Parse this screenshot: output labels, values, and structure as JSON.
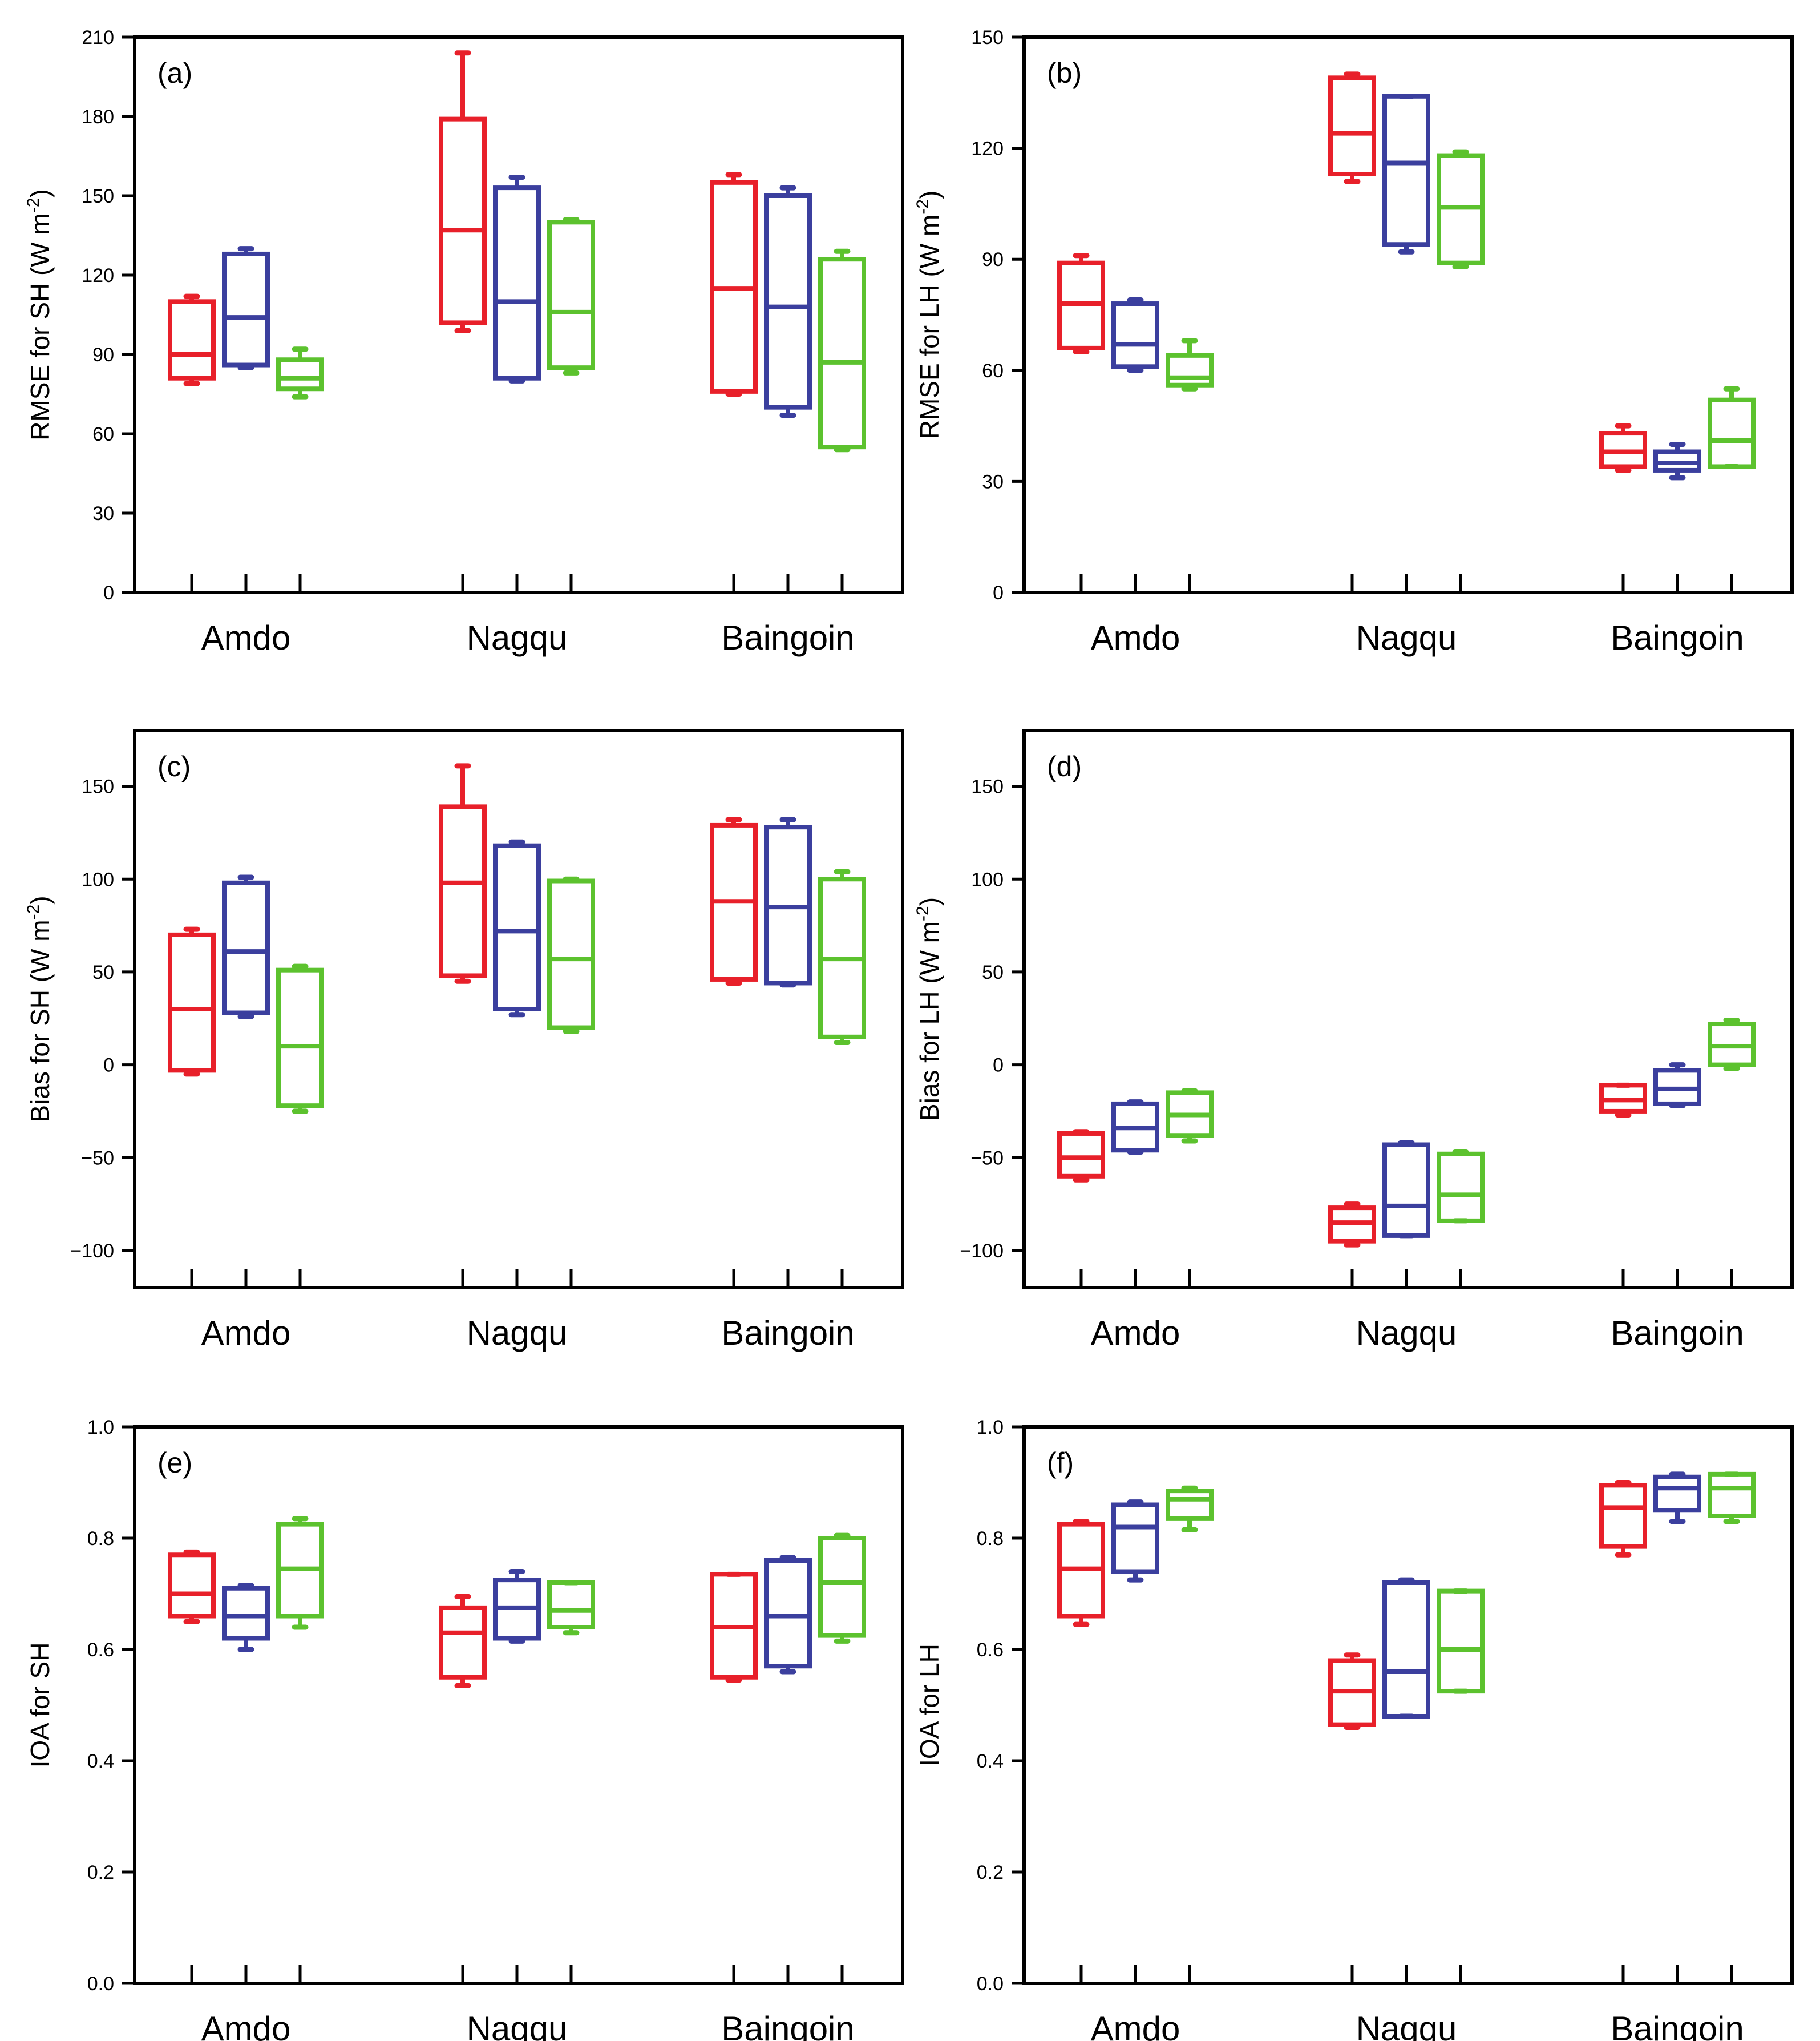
{
  "colors": {
    "red": "#e8202a",
    "blue": "#3b3f9e",
    "green": "#5cc22e"
  },
  "categories": [
    "Amdo",
    "Nagqu",
    "Baingoin"
  ],
  "chart_data": [
    {
      "type": "box",
      "panel": "(a)",
      "ylabel": "RMSE for SH (W m",
      "ylabel_sup": "-2",
      "ylabel_close": ")",
      "ylim": [
        0,
        210
      ],
      "yticks": [
        "0",
        "30",
        "60",
        "90",
        "120",
        "150",
        "180",
        "210"
      ],
      "series": [
        {
          "name": "red",
          "boxes": [
            {
              "low": 79,
              "q1": 81,
              "median": 90,
              "q3": 110,
              "high": 112
            },
            {
              "low": 99,
              "q1": 102,
              "median": 137,
              "q3": 179,
              "high": 204
            },
            {
              "low": 75,
              "q1": 76,
              "median": 115,
              "q3": 155,
              "high": 158
            }
          ]
        },
        {
          "name": "blue",
          "boxes": [
            {
              "low": 85,
              "q1": 86,
              "median": 104,
              "q3": 128,
              "high": 130
            },
            {
              "low": 80,
              "q1": 81,
              "median": 110,
              "q3": 153,
              "high": 157
            },
            {
              "low": 67,
              "q1": 70,
              "median": 108,
              "q3": 150,
              "high": 153
            }
          ]
        },
        {
          "name": "green",
          "boxes": [
            {
              "low": 74,
              "q1": 77,
              "median": 81,
              "q3": 88,
              "high": 92
            },
            {
              "low": 83,
              "q1": 85,
              "median": 106,
              "q3": 140,
              "high": 141
            },
            {
              "low": 54,
              "q1": 55,
              "median": 87,
              "q3": 126,
              "high": 129
            }
          ]
        }
      ]
    },
    {
      "type": "box",
      "panel": "(b)",
      "ylabel": "RMSE for LH (W m",
      "ylabel_sup": "-2",
      "ylabel_close": ")",
      "ylim": [
        0,
        150
      ],
      "yticks": [
        "0",
        "30",
        "60",
        "90",
        "120",
        "150"
      ],
      "series": [
        {
          "name": "red",
          "boxes": [
            {
              "low": 65,
              "q1": 66,
              "median": 78,
              "q3": 89,
              "high": 91
            },
            {
              "low": 111,
              "q1": 113,
              "median": 124,
              "q3": 139,
              "high": 140
            },
            {
              "low": 33,
              "q1": 34,
              "median": 38,
              "q3": 43,
              "high": 45
            }
          ]
        },
        {
          "name": "blue",
          "boxes": [
            {
              "low": 60,
              "q1": 61,
              "median": 67,
              "q3": 78,
              "high": 79
            },
            {
              "low": 92,
              "q1": 94,
              "median": 116,
              "q3": 134,
              "high": 134
            },
            {
              "low": 31,
              "q1": 33,
              "median": 35,
              "q3": 38,
              "high": 40
            }
          ]
        },
        {
          "name": "green",
          "boxes": [
            {
              "low": 55,
              "q1": 56,
              "median": 58,
              "q3": 64,
              "high": 68
            },
            {
              "low": 88,
              "q1": 89,
              "median": 104,
              "q3": 118,
              "high": 119
            },
            {
              "low": 34,
              "q1": 34,
              "median": 41,
              "q3": 52,
              "high": 55
            }
          ]
        }
      ]
    },
    {
      "type": "box",
      "panel": "(c)",
      "ylabel": "Bias for SH (W m",
      "ylabel_sup": "-2",
      "ylabel_close": ")",
      "ylim": [
        -120,
        180
      ],
      "yticks": [
        "−100",
        "−50",
        "0",
        "50",
        "100",
        "150"
      ],
      "ytick_values": [
        -100,
        -50,
        0,
        50,
        100,
        150
      ],
      "series": [
        {
          "name": "red",
          "boxes": [
            {
              "low": -5,
              "q1": -3,
              "median": 30,
              "q3": 70,
              "high": 73
            },
            {
              "low": 45,
              "q1": 48,
              "median": 98,
              "q3": 139,
              "high": 161
            },
            {
              "low": 44,
              "q1": 46,
              "median": 88,
              "q3": 129,
              "high": 132
            }
          ]
        },
        {
          "name": "blue",
          "boxes": [
            {
              "low": 26,
              "q1": 28,
              "median": 61,
              "q3": 98,
              "high": 101
            },
            {
              "low": 27,
              "q1": 30,
              "median": 72,
              "q3": 118,
              "high": 120
            },
            {
              "low": 43,
              "q1": 44,
              "median": 85,
              "q3": 128,
              "high": 132
            }
          ]
        },
        {
          "name": "green",
          "boxes": [
            {
              "low": -25,
              "q1": -22,
              "median": 10,
              "q3": 51,
              "high": 53
            },
            {
              "low": 18,
              "q1": 20,
              "median": 57,
              "q3": 99,
              "high": 100
            },
            {
              "low": 12,
              "q1": 15,
              "median": 57,
              "q3": 100,
              "high": 104
            }
          ]
        }
      ]
    },
    {
      "type": "box",
      "panel": "(d)",
      "ylabel": "Bias for LH (W m",
      "ylabel_sup": "-2",
      "ylabel_close": ")",
      "ylim": [
        -120,
        180
      ],
      "yticks": [
        "−100",
        "−50",
        "0",
        "50",
        "100",
        "150"
      ],
      "ytick_values": [
        -100,
        -50,
        0,
        50,
        100,
        150
      ],
      "series": [
        {
          "name": "red",
          "boxes": [
            {
              "low": -62,
              "q1": -60,
              "median": -50,
              "q3": -37,
              "high": -36
            },
            {
              "low": -97,
              "q1": -95,
              "median": -85,
              "q3": -77,
              "high": -75
            },
            {
              "low": -27,
              "q1": -25,
              "median": -19,
              "q3": -11,
              "high": -11
            }
          ]
        },
        {
          "name": "blue",
          "boxes": [
            {
              "low": -47,
              "q1": -46,
              "median": -34,
              "q3": -21,
              "high": -20
            },
            {
              "low": -92,
              "q1": -92,
              "median": -76,
              "q3": -43,
              "high": -42
            },
            {
              "low": -22,
              "q1": -21,
              "median": -13,
              "q3": -3,
              "high": 0
            }
          ]
        },
        {
          "name": "green",
          "boxes": [
            {
              "low": -41,
              "q1": -38,
              "median": -27,
              "q3": -15,
              "high": -14
            },
            {
              "low": -84,
              "q1": -84,
              "median": -70,
              "q3": -48,
              "high": -47
            },
            {
              "low": -2,
              "q1": 0,
              "median": 10,
              "q3": 22,
              "high": 24
            }
          ]
        }
      ]
    },
    {
      "type": "box",
      "panel": "(e)",
      "ylabel": "IOA for SH",
      "ylabel_sup": "",
      "ylabel_close": "",
      "ylim": [
        0,
        1.0
      ],
      "yticks": [
        "0.0",
        "0.2",
        "0.4",
        "0.6",
        "0.8",
        "1.0"
      ],
      "series": [
        {
          "name": "red",
          "boxes": [
            {
              "low": 0.65,
              "q1": 0.66,
              "median": 0.7,
              "q3": 0.77,
              "high": 0.775
            },
            {
              "low": 0.535,
              "q1": 0.55,
              "median": 0.63,
              "q3": 0.675,
              "high": 0.695
            },
            {
              "low": 0.545,
              "q1": 0.55,
              "median": 0.64,
              "q3": 0.735,
              "high": 0.735
            }
          ]
        },
        {
          "name": "blue",
          "boxes": [
            {
              "low": 0.6,
              "q1": 0.62,
              "median": 0.66,
              "q3": 0.71,
              "high": 0.715
            },
            {
              "low": 0.615,
              "q1": 0.62,
              "median": 0.675,
              "q3": 0.725,
              "high": 0.74
            },
            {
              "low": 0.56,
              "q1": 0.57,
              "median": 0.66,
              "q3": 0.76,
              "high": 0.765
            }
          ]
        },
        {
          "name": "green",
          "boxes": [
            {
              "low": 0.64,
              "q1": 0.66,
              "median": 0.745,
              "q3": 0.825,
              "high": 0.835
            },
            {
              "low": 0.63,
              "q1": 0.64,
              "median": 0.67,
              "q3": 0.72,
              "high": 0.72
            },
            {
              "low": 0.615,
              "q1": 0.625,
              "median": 0.72,
              "q3": 0.8,
              "high": 0.805
            }
          ]
        }
      ]
    },
    {
      "type": "box",
      "panel": "(f)",
      "ylabel": "IOA for LH",
      "ylabel_sup": "",
      "ylabel_close": "",
      "ylim": [
        0,
        1.0
      ],
      "yticks": [
        "0.0",
        "0.2",
        "0.4",
        "0.6",
        "0.8",
        "1.0"
      ],
      "series": [
        {
          "name": "red",
          "boxes": [
            {
              "low": 0.645,
              "q1": 0.66,
              "median": 0.745,
              "q3": 0.825,
              "high": 0.83
            },
            {
              "low": 0.46,
              "q1": 0.465,
              "median": 0.525,
              "q3": 0.58,
              "high": 0.59
            },
            {
              "low": 0.77,
              "q1": 0.785,
              "median": 0.855,
              "q3": 0.895,
              "high": 0.9
            }
          ]
        },
        {
          "name": "blue",
          "boxes": [
            {
              "low": 0.725,
              "q1": 0.74,
              "median": 0.82,
              "q3": 0.86,
              "high": 0.865
            },
            {
              "low": 0.48,
              "q1": 0.48,
              "median": 0.56,
              "q3": 0.72,
              "high": 0.725
            },
            {
              "low": 0.83,
              "q1": 0.85,
              "median": 0.89,
              "q3": 0.91,
              "high": 0.915
            }
          ]
        },
        {
          "name": "green",
          "boxes": [
            {
              "low": 0.815,
              "q1": 0.835,
              "median": 0.87,
              "q3": 0.885,
              "high": 0.89
            },
            {
              "low": 0.525,
              "q1": 0.525,
              "median": 0.6,
              "q3": 0.705,
              "high": 0.705
            },
            {
              "low": 0.83,
              "q1": 0.84,
              "median": 0.89,
              "q3": 0.915,
              "high": 0.915
            }
          ]
        }
      ]
    }
  ]
}
